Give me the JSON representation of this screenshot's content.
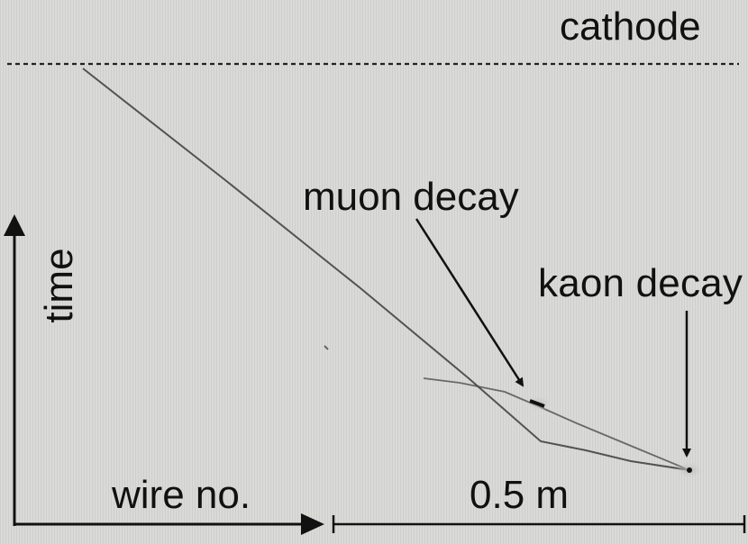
{
  "labels": {
    "cathode": "cathode",
    "muon_decay": "muon decay",
    "kaon_decay": "kaon decay",
    "time_axis": "time",
    "wire_axis": "wire no.",
    "scale": "0.5 m"
  },
  "colors": {
    "background": "#d5d5d3",
    "track": "#3a3a3a",
    "annotation": "#111111"
  }
}
